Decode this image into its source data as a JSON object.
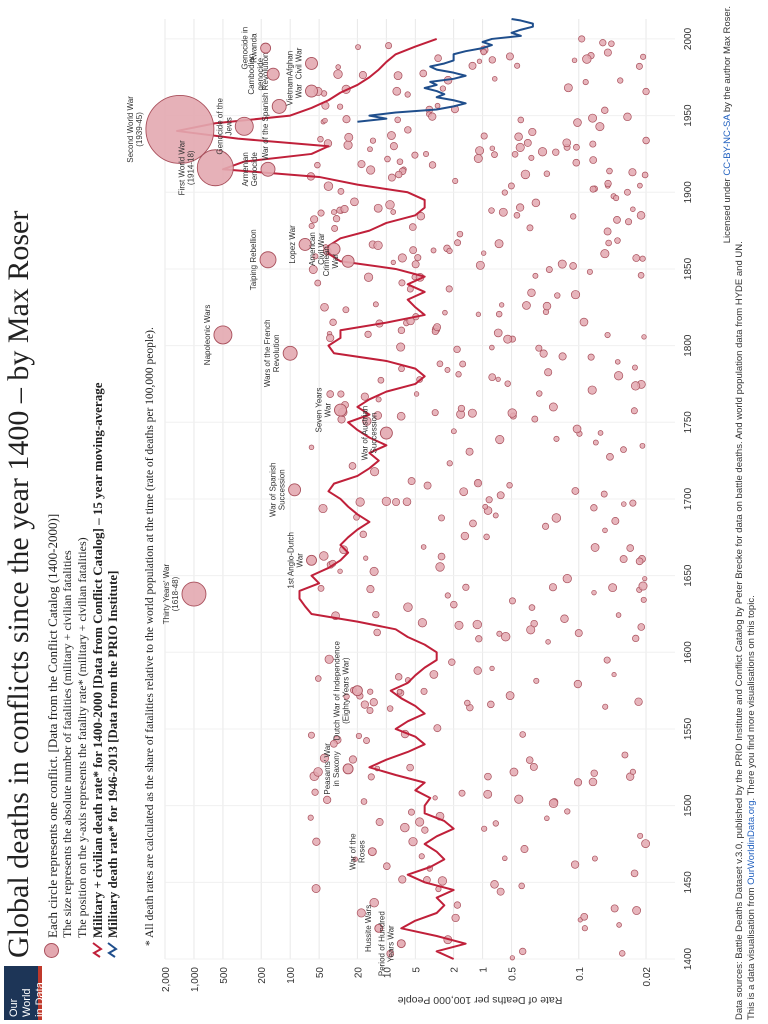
{
  "logo": {
    "line1": "Our World",
    "line2": "in Data"
  },
  "title": "Global deaths in conflicts since the year 1400 – by Max Roser",
  "legend": {
    "circles": "Each circle represents one conflict. [Data from the Conflict Catalog (1400-2000)]",
    "size_note": "The size represents the absolute number of fatalities (military + civilian fatalities",
    "position_note": "The position on the y-axis represents the fatality rate* (military + civilian fatalities)",
    "red_line": "Military + civilian death rate* for 1400-2000 [Data from Conflict Catalog] – 15 year moving-average",
    "blue_line": "Military death rate* for 1946-2013 [Data from the PRIO Institute]"
  },
  "note": "* All death rates are calculated as the share of fatalities relative to the world population at the time (rate of deaths per 100,000 people).",
  "footer": {
    "sources": "Data sources: Battle Deaths Dataset v.3.0, published by the PRIO Institute and Conflict Catalog by Peter Brecke for data on battle deaths. And world population data from HYDE and UN.",
    "visualisation_pre": "This is a data visualisation from ",
    "site": "OurWorldinData.org",
    "visualisation_post": ". There you find more visualisations on this topic.",
    "license_pre": "Licensed under ",
    "license_link": "CC-BY-NC-SA",
    "license_post": " by the author Max Roser."
  },
  "colors": {
    "red_line": "#c0203a",
    "blue_line": "#1f4e8c",
    "circle_fill": "#e3a8b0",
    "circle_stroke": "#a9505c"
  },
  "chart_data": {
    "type": "scatter",
    "ylabel": "Rate of Deaths per 100,000 People",
    "yscale": "log",
    "xlim": [
      1400,
      2013
    ],
    "ylim": [
      0.01,
      2000
    ],
    "x_ticks": [
      1400,
      1450,
      1500,
      1550,
      1600,
      1650,
      1700,
      1750,
      1800,
      1850,
      1900,
      1950,
      2000
    ],
    "y_ticks": [
      {
        "v": 2000,
        "label": "2,000"
      },
      {
        "v": 1000,
        "label": "1,000"
      },
      {
        "v": 500,
        "label": "500"
      },
      {
        "v": 200,
        "label": "200"
      },
      {
        "v": 100,
        "label": "100"
      },
      {
        "v": 50,
        "label": "50"
      },
      {
        "v": 20,
        "label": "20"
      },
      {
        "v": 10,
        "label": "10"
      },
      {
        "v": 5,
        "label": "5"
      },
      {
        "v": 2,
        "label": "2"
      },
      {
        "v": 1,
        "label": "1"
      },
      {
        "v": 0.5,
        "label": "0.5"
      },
      {
        "v": 0.1,
        "label": "0.1"
      },
      {
        "v": 0.02,
        "label": "0.02"
      }
    ],
    "conflicts": [
      {
        "x": 1941,
        "y": 1400,
        "size": 34,
        "label": "Second World War\n(1939-45)"
      },
      {
        "x": 1916,
        "y": 600,
        "size": 18,
        "label": "First World War\n(1914-18)"
      },
      {
        "x": 1943,
        "y": 300,
        "size": 9,
        "label": "Genocide of the\nJews"
      },
      {
        "x": 1915,
        "y": 170,
        "size": 7,
        "label": "Armenian\nGenocide"
      },
      {
        "x": 1956,
        "y": 130,
        "size": 7,
        "label": "War of the Spanish Revolution"
      },
      {
        "x": 1966,
        "y": 60,
        "size": 6,
        "label": "Vietnam\nWar"
      },
      {
        "x": 1977,
        "y": 150,
        "size": 6,
        "label": "Cambodian\ngenocide"
      },
      {
        "x": 1984,
        "y": 60,
        "size": 6,
        "label": "Afghan\nCivil War"
      },
      {
        "x": 1994,
        "y": 180,
        "size": 5,
        "label": "Genocide in\nRwanda"
      },
      {
        "x": 1638,
        "y": 1000,
        "size": 12,
        "label": "Thirty Years' War\n(1618-48)"
      },
      {
        "x": 1807,
        "y": 500,
        "size": 9,
        "label": "Napoleonic Wars"
      },
      {
        "x": 1856,
        "y": 170,
        "size": 8,
        "label": "Taiping Rebellion"
      },
      {
        "x": 1866,
        "y": 70,
        "size": 6,
        "label": "Lopez War"
      },
      {
        "x": 1863,
        "y": 35,
        "size": 6,
        "label": "American\nCivil War"
      },
      {
        "x": 1855,
        "y": 25,
        "size": 6,
        "label": "Crimean\nWar"
      },
      {
        "x": 1795,
        "y": 100,
        "size": 7,
        "label": "Wars of the French\nRevolution"
      },
      {
        "x": 1758,
        "y": 30,
        "size": 6,
        "label": "Seven Years\nWar"
      },
      {
        "x": 1743,
        "y": 10,
        "size": 6,
        "label": "War of Austrian\nSuccession"
      },
      {
        "x": 1706,
        "y": 90,
        "size": 6,
        "label": "War of Spanish\nSuccession"
      },
      {
        "x": 1660,
        "y": 60,
        "size": 5,
        "label": "1st Anglo-Dutch\nWar"
      },
      {
        "x": 1575,
        "y": 20,
        "size": 5,
        "label": "Dutch War of Independence\n(Eighty Years War)"
      },
      {
        "x": 1524,
        "y": 25,
        "size": 5,
        "label": "Peasants' War\nin Saxony"
      },
      {
        "x": 1470,
        "y": 14,
        "size": 4,
        "label": "War of the\nRoses"
      },
      {
        "x": 1420,
        "y": 12,
        "size": 4,
        "label": "Hussite Wars"
      },
      {
        "x": 1410,
        "y": 7,
        "size": 4,
        "label": "Period of Hundred\nYears War"
      }
    ],
    "series": [
      {
        "name": "Military + civilian death rate* for 1400-2000",
        "x": [
          1400,
          1405,
          1410,
          1415,
          1420,
          1425,
          1430,
          1435,
          1440,
          1445,
          1450,
          1455,
          1460,
          1465,
          1470,
          1475,
          1480,
          1485,
          1490,
          1495,
          1500,
          1505,
          1510,
          1515,
          1520,
          1525,
          1530,
          1535,
          1540,
          1545,
          1550,
          1555,
          1560,
          1565,
          1570,
          1575,
          1580,
          1585,
          1590,
          1595,
          1600,
          1605,
          1610,
          1615,
          1620,
          1625,
          1630,
          1635,
          1640,
          1645,
          1650,
          1655,
          1660,
          1665,
          1670,
          1675,
          1680,
          1685,
          1690,
          1695,
          1700,
          1705,
          1710,
          1715,
          1720,
          1725,
          1730,
          1735,
          1740,
          1745,
          1750,
          1755,
          1760,
          1765,
          1770,
          1775,
          1780,
          1785,
          1790,
          1795,
          1800,
          1805,
          1810,
          1815,
          1820,
          1825,
          1830,
          1835,
          1840,
          1845,
          1850,
          1855,
          1860,
          1865,
          1870,
          1875,
          1880,
          1885,
          1890,
          1895,
          1900,
          1905,
          1910,
          1915,
          1920,
          1925,
          1930,
          1935,
          1940,
          1945,
          1950,
          1955,
          1960,
          1965,
          1970,
          1975,
          1980,
          1985,
          1990,
          1995,
          2000
        ],
        "values": [
          2,
          3,
          1.5,
          3,
          7,
          5,
          3,
          2.5,
          3,
          2,
          4,
          6,
          3.5,
          2.5,
          3,
          4,
          3,
          2,
          2.5,
          4,
          4,
          3.5,
          5,
          4,
          8,
          15,
          10,
          6,
          4,
          5,
          8,
          6,
          4,
          5,
          7,
          9,
          6,
          5,
          4,
          3,
          3,
          4,
          6,
          8,
          20,
          60,
          70,
          80,
          80,
          50,
          60,
          40,
          30,
          25,
          30,
          25,
          20,
          15,
          20,
          25,
          30,
          40,
          35,
          20,
          15,
          12,
          15,
          10,
          15,
          20,
          25,
          15,
          20,
          15,
          10,
          5,
          4,
          5,
          10,
          35,
          40,
          30,
          30,
          10,
          4,
          5,
          6,
          4,
          6,
          4,
          8,
          30,
          40,
          40,
          30,
          15,
          10,
          5,
          4,
          4,
          6,
          20,
          50,
          500,
          300,
          60,
          40,
          350,
          1500,
          600,
          100,
          60,
          40,
          30,
          20,
          15,
          12,
          10,
          8,
          5,
          3
        ]
      },
      {
        "name": "Military death rate* for 1946-2013",
        "x": [
          1946,
          1948,
          1950,
          1952,
          1954,
          1956,
          1958,
          1960,
          1962,
          1964,
          1966,
          1968,
          1970,
          1972,
          1974,
          1976,
          1978,
          1980,
          1982,
          1984,
          1986,
          1988,
          1990,
          1992,
          1994,
          1996,
          1998,
          2000,
          2002,
          2004,
          2006,
          2008,
          2010,
          2012,
          2013
        ],
        "values": [
          20,
          10,
          15,
          8,
          3,
          2,
          1.5,
          2,
          3,
          2.5,
          3,
          4,
          3,
          3.5,
          2,
          1.5,
          2,
          3,
          3.5,
          2.5,
          2,
          2,
          2,
          1.5,
          1,
          0.8,
          1,
          0.8,
          0.4,
          0.5,
          0.4,
          0.3,
          0.3,
          0.4,
          0.5
        ]
      }
    ]
  }
}
